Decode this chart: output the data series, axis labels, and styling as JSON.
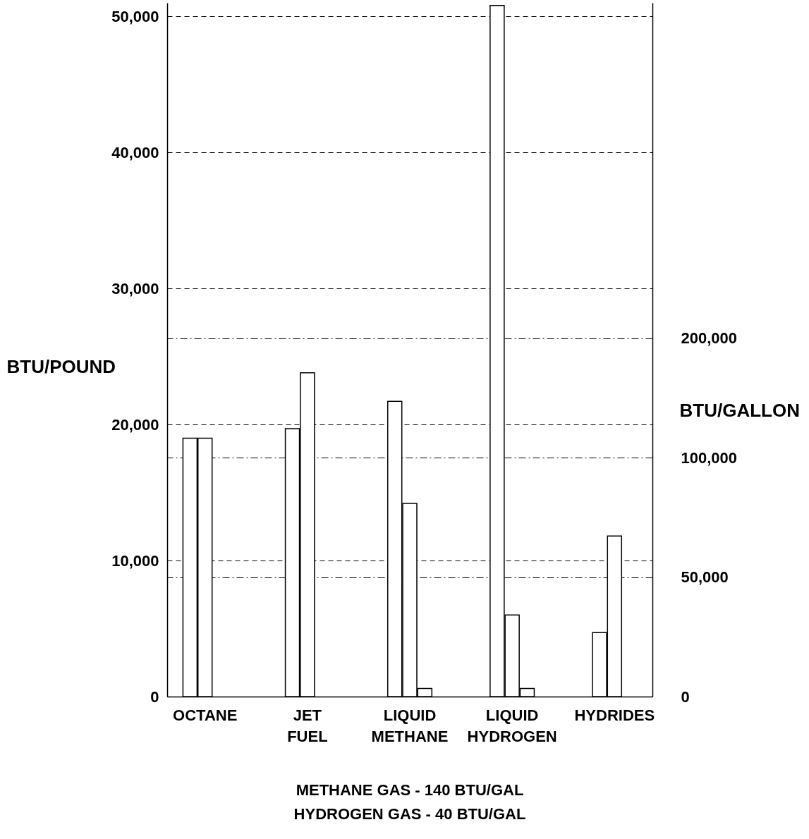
{
  "chart_data": {
    "type": "bar",
    "ylabel": "BTU/POUND",
    "y2label": "BTU/GALLON",
    "categories": [
      "OCTANE",
      "JET FUEL",
      "LIQUID METHANE",
      "LIQUID HYDROGEN",
      "HYDRIDES"
    ],
    "series": [
      {
        "color": "#ffffff",
        "values": [
          19000,
          19700,
          21700,
          50800,
          4700
        ]
      },
      {
        "color": "#ffffff",
        "values": [
          19000,
          23800,
          14200,
          6000,
          11800
        ]
      },
      {
        "color": "#ffffff",
        "values": [
          null,
          null,
          600,
          600,
          null
        ]
      }
    ],
    "ylim": [
      0,
      51000
    ],
    "yticks": [
      0,
      {
        "value": 10000,
        "label": "10,000"
      },
      {
        "value": 20000,
        "label": "20,000"
      },
      {
        "value": 30000,
        "label": "30,000"
      },
      {
        "value": 40000,
        "label": "40,000"
      },
      {
        "value": 50000,
        "label": "50,000"
      }
    ],
    "y2lim": [
      0,
      1400000
    ],
    "y2ticks": [
      0,
      {
        "value": 50000,
        "label": "50,000"
      },
      {
        "value": 100000,
        "label": "100,000"
      },
      {
        "value": 200000,
        "label": "200,000"
      }
    ],
    "log": "y2",
    "grid": true,
    "annotations": [
      "METHANE GAS - 140 BTU/GAL",
      "HYDROGEN  GAS - 40 BTU/GAL"
    ]
  }
}
